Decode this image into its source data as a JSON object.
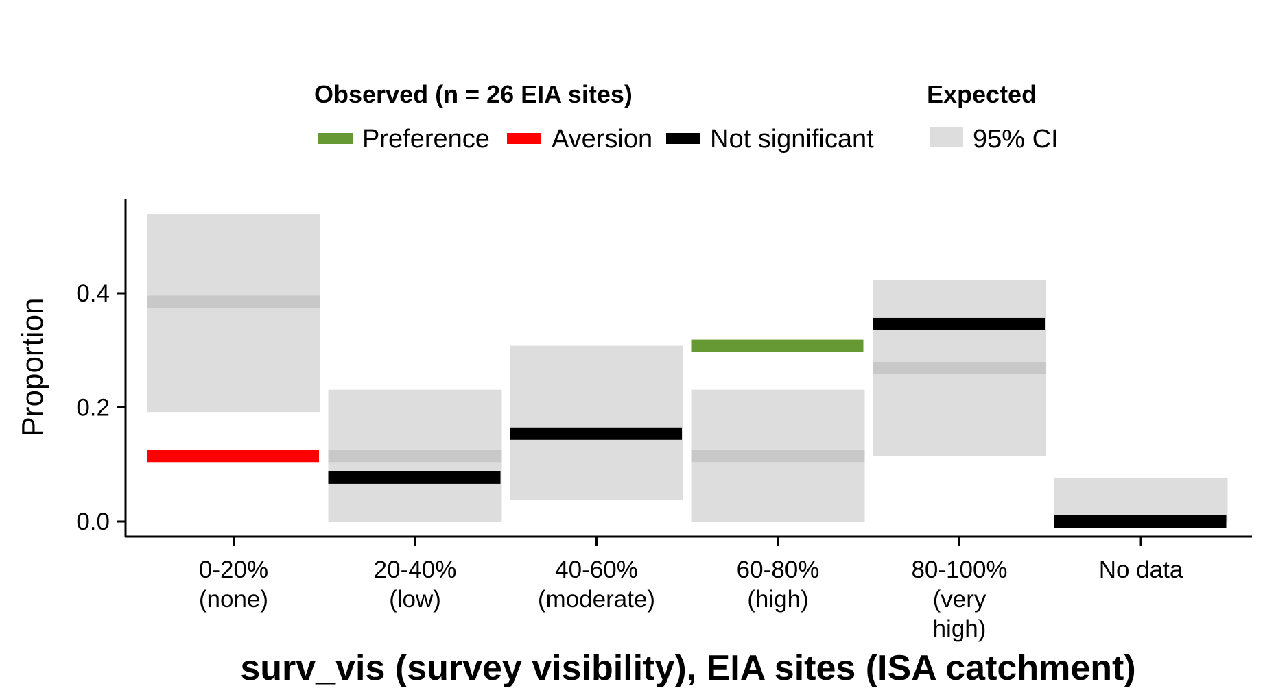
{
  "chart_data": {
    "type": "bar",
    "title": "",
    "xlabel": "surv_vis (survey visibility), EIA sites (ISA catchment)",
    "ylabel": "Proportion",
    "ylim": [
      0.0,
      0.55
    ],
    "yticks": [
      "0.0",
      "0.2",
      "0.4"
    ],
    "ytick_values": [
      0.0,
      0.2,
      0.4
    ],
    "categories": [
      [
        "0-20%",
        "(none)"
      ],
      [
        "20-40%",
        "(low)"
      ],
      [
        "40-60%",
        "(moderate)"
      ],
      [
        "60-80%",
        "(high)"
      ],
      [
        "80-100%",
        "(very",
        "high)"
      ],
      [
        "No data"
      ]
    ],
    "observed": [
      {
        "value": 0.115,
        "status": "Aversion"
      },
      {
        "value": 0.077,
        "status": "Not significant"
      },
      {
        "value": 0.154,
        "status": "Not significant"
      },
      {
        "value": 0.308,
        "status": "Preference"
      },
      {
        "value": 0.346,
        "status": "Not significant"
      },
      {
        "value": 0.0,
        "status": "Not significant"
      }
    ],
    "expected": [
      {
        "mean": 0.385,
        "ci_low": 0.192,
        "ci_high": 0.538
      },
      {
        "mean": 0.115,
        "ci_low": 0.0,
        "ci_high": 0.231
      },
      {
        "mean": null,
        "ci_low": 0.038,
        "ci_high": 0.308
      },
      {
        "mean": 0.115,
        "ci_low": 0.0,
        "ci_high": 0.231
      },
      {
        "mean": 0.269,
        "ci_low": 0.115,
        "ci_high": 0.423
      },
      {
        "mean": null,
        "ci_low": 0.0,
        "ci_high": 0.077
      }
    ],
    "legend": {
      "placement": "top",
      "observed_title": "Observed (n = 26 EIA sites)",
      "observed_items": [
        {
          "label": "Preference",
          "color": "#669933"
        },
        {
          "label": "Aversion",
          "color": "#ff0000"
        },
        {
          "label": "Not significant",
          "color": "#000000"
        }
      ],
      "expected_title": "Expected",
      "expected_items": [
        {
          "label": "95% CI",
          "color": "#dddddd"
        }
      ]
    },
    "colors": {
      "ci_fill": "#dddddd",
      "expected_mean": "#c8c8c8",
      "axis": "#000000"
    },
    "grid": false
  }
}
